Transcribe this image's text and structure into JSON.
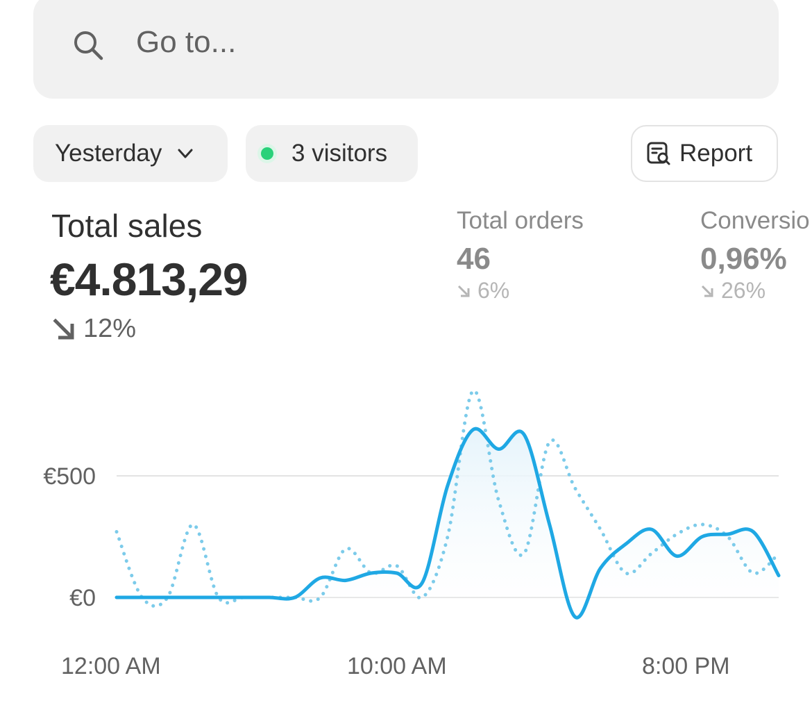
{
  "search": {
    "placeholder": "Go to...",
    "icon": "search-icon"
  },
  "filters": {
    "date_range": "Yesterday",
    "visitors": "3 visitors",
    "visitors_dot_color": "#29d17a",
    "report_label": "Report"
  },
  "metrics": {
    "total_sales": {
      "label": "Total sales",
      "value": "€4.813,29",
      "change": "12%",
      "direction": "down"
    },
    "total_orders": {
      "label": "Total orders",
      "value": "46",
      "change": "6%",
      "direction": "down"
    },
    "conversion": {
      "label": "Conversio",
      "value": "0,96%",
      "change": "26%",
      "direction": "down"
    }
  },
  "chart_data": {
    "type": "line",
    "y_ticks": [
      "€500",
      "€0"
    ],
    "x_ticks": [
      "12:00 AM",
      "10:00 AM",
      "8:00 PM"
    ],
    "ylim": [
      0,
      800
    ],
    "grid": true,
    "series": [
      {
        "style": "solid",
        "color": "#1fa8e4",
        "values": [
          0,
          0,
          0,
          0,
          0,
          0,
          0,
          0,
          80,
          70,
          100,
          100,
          60,
          460,
          690,
          610,
          670,
          300,
          -80,
          120,
          220,
          280,
          170,
          250,
          260,
          270,
          90
        ]
      },
      {
        "style": "dotted",
        "color": "#7ccbea",
        "values": [
          270,
          0,
          0,
          300,
          0,
          0,
          0,
          0,
          0,
          200,
          100,
          130,
          0,
          250,
          850,
          400,
          180,
          640,
          450,
          280,
          100,
          180,
          260,
          300,
          250,
          100,
          180
        ]
      }
    ]
  }
}
